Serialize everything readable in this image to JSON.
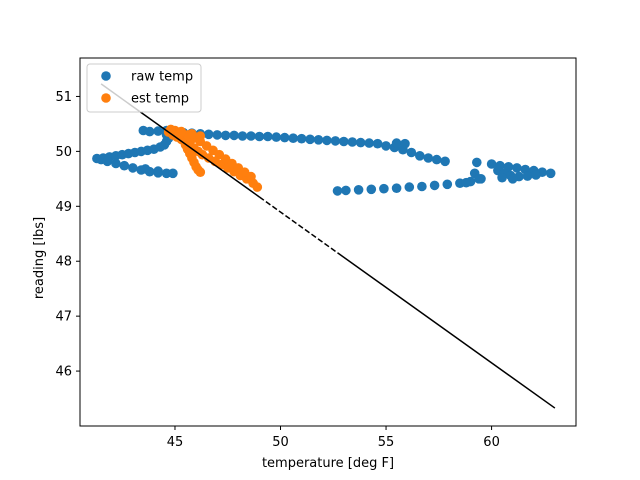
{
  "chart_data": {
    "type": "scatter",
    "xlabel": "temperature [deg F]",
    "ylabel": "reading [lbs]",
    "xlim": [
      40.5,
      64.0
    ],
    "ylim": [
      45.0,
      51.7
    ],
    "xticks": [
      45,
      50,
      55,
      60
    ],
    "yticks": [
      46,
      47,
      48,
      49,
      50,
      51
    ],
    "legend_position": "top-left",
    "colors": {
      "raw": "#1f77b4",
      "est": "#ff7f0e",
      "fit": "#000000"
    },
    "series": [
      {
        "name": "raw temp",
        "type": "scatter",
        "color": "#1f77b4",
        "points": [
          [
            41.3,
            49.87
          ],
          [
            41.6,
            49.88
          ],
          [
            41.9,
            49.9
          ],
          [
            42.2,
            49.92
          ],
          [
            42.5,
            49.94
          ],
          [
            42.8,
            49.96
          ],
          [
            43.1,
            49.98
          ],
          [
            43.4,
            50.0
          ],
          [
            43.7,
            50.02
          ],
          [
            44.0,
            50.04
          ],
          [
            44.3,
            50.08
          ],
          [
            44.5,
            50.12
          ],
          [
            44.6,
            50.18
          ],
          [
            44.7,
            50.24
          ],
          [
            44.6,
            50.3
          ],
          [
            43.5,
            50.38
          ],
          [
            43.8,
            50.36
          ],
          [
            44.2,
            50.37
          ],
          [
            44.6,
            50.38
          ],
          [
            45.0,
            50.36
          ],
          [
            45.4,
            50.34
          ],
          [
            45.8,
            50.33
          ],
          [
            46.2,
            50.32
          ],
          [
            46.6,
            50.31
          ],
          [
            47.0,
            50.3
          ],
          [
            47.4,
            50.29
          ],
          [
            47.8,
            50.29
          ],
          [
            48.2,
            50.28
          ],
          [
            48.6,
            50.28
          ],
          [
            49.0,
            50.27
          ],
          [
            49.4,
            50.27
          ],
          [
            49.8,
            50.26
          ],
          [
            50.2,
            50.25
          ],
          [
            50.6,
            50.24
          ],
          [
            51.0,
            50.23
          ],
          [
            51.4,
            50.22
          ],
          [
            51.8,
            50.21
          ],
          [
            52.2,
            50.2
          ],
          [
            52.6,
            50.19
          ],
          [
            53.0,
            50.18
          ],
          [
            53.4,
            50.17
          ],
          [
            53.8,
            50.16
          ],
          [
            54.2,
            50.15
          ],
          [
            54.6,
            50.14
          ],
          [
            55.0,
            50.1
          ],
          [
            55.4,
            50.07
          ],
          [
            55.8,
            50.03
          ],
          [
            56.2,
            49.98
          ],
          [
            56.6,
            49.92
          ],
          [
            57.0,
            49.88
          ],
          [
            57.4,
            49.85
          ],
          [
            57.8,
            49.82
          ],
          [
            55.5,
            50.15
          ],
          [
            55.9,
            50.14
          ],
          [
            59.3,
            49.8
          ],
          [
            60.0,
            49.77
          ],
          [
            60.4,
            49.74
          ],
          [
            60.8,
            49.72
          ],
          [
            61.2,
            49.7
          ],
          [
            61.6,
            49.67
          ],
          [
            62.0,
            49.65
          ],
          [
            62.4,
            49.62
          ],
          [
            62.8,
            49.6
          ],
          [
            60.3,
            49.65
          ],
          [
            60.6,
            49.6
          ],
          [
            60.9,
            49.56
          ],
          [
            61.3,
            49.54
          ],
          [
            61.7,
            49.55
          ],
          [
            62.1,
            49.57
          ],
          [
            61.0,
            49.5
          ],
          [
            60.5,
            49.52
          ],
          [
            59.5,
            49.5
          ],
          [
            59.0,
            49.45
          ],
          [
            58.5,
            49.42
          ],
          [
            57.9,
            49.4
          ],
          [
            57.3,
            49.38
          ],
          [
            56.7,
            49.36
          ],
          [
            56.1,
            49.35
          ],
          [
            55.5,
            49.33
          ],
          [
            54.9,
            49.32
          ],
          [
            54.3,
            49.31
          ],
          [
            53.7,
            49.3
          ],
          [
            53.1,
            49.29
          ],
          [
            52.7,
            49.28
          ],
          [
            59.2,
            49.6
          ],
          [
            59.4,
            49.5
          ],
          [
            58.8,
            49.43
          ],
          [
            41.5,
            49.85
          ],
          [
            41.8,
            49.82
          ],
          [
            42.2,
            49.78
          ],
          [
            42.6,
            49.74
          ],
          [
            43.0,
            49.7
          ],
          [
            43.4,
            49.66
          ],
          [
            43.8,
            49.63
          ],
          [
            44.2,
            49.61
          ],
          [
            44.6,
            49.6
          ],
          [
            44.9,
            49.6
          ],
          [
            44.2,
            49.64
          ],
          [
            43.6,
            49.68
          ]
        ]
      },
      {
        "name": "est temp",
        "type": "scatter",
        "color": "#ff7f0e",
        "points": [
          [
            45.0,
            50.38
          ],
          [
            45.2,
            50.34
          ],
          [
            45.3,
            50.28
          ],
          [
            45.4,
            50.2
          ],
          [
            45.5,
            50.12
          ],
          [
            45.6,
            50.04
          ],
          [
            45.7,
            49.96
          ],
          [
            45.8,
            49.88
          ],
          [
            45.9,
            49.8
          ],
          [
            46.0,
            49.72
          ],
          [
            46.1,
            49.66
          ],
          [
            46.2,
            49.62
          ],
          [
            44.9,
            50.3
          ],
          [
            45.1,
            50.26
          ],
          [
            45.3,
            50.22
          ],
          [
            45.5,
            50.17
          ],
          [
            45.7,
            50.12
          ],
          [
            45.9,
            50.06
          ],
          [
            46.1,
            50.0
          ],
          [
            46.3,
            49.94
          ],
          [
            46.6,
            49.88
          ],
          [
            46.9,
            49.82
          ],
          [
            47.2,
            49.76
          ],
          [
            47.5,
            49.7
          ],
          [
            47.8,
            49.63
          ],
          [
            48.1,
            49.56
          ],
          [
            48.4,
            49.5
          ],
          [
            48.7,
            49.42
          ],
          [
            48.9,
            49.35
          ],
          [
            45.6,
            50.3
          ],
          [
            45.9,
            50.24
          ],
          [
            46.2,
            50.18
          ],
          [
            46.5,
            50.1
          ],
          [
            46.8,
            50.02
          ],
          [
            47.1,
            49.94
          ],
          [
            47.4,
            49.86
          ],
          [
            47.7,
            49.78
          ],
          [
            48.0,
            49.7
          ],
          [
            48.3,
            49.62
          ],
          [
            48.6,
            49.54
          ],
          [
            44.7,
            50.35
          ],
          [
            44.8,
            50.4
          ],
          [
            45.3,
            50.36
          ],
          [
            45.8,
            50.32
          ],
          [
            46.2,
            50.28
          ]
        ]
      }
    ],
    "fit_line": {
      "slope": -0.2745,
      "intercept": 62.62,
      "segments": [
        {
          "x": [
            41.5,
            49.0
          ],
          "style": "solid"
        },
        {
          "x": [
            49.0,
            52.7
          ],
          "style": "dashed"
        },
        {
          "x": [
            52.7,
            63.0
          ],
          "style": "solid"
        }
      ]
    }
  }
}
